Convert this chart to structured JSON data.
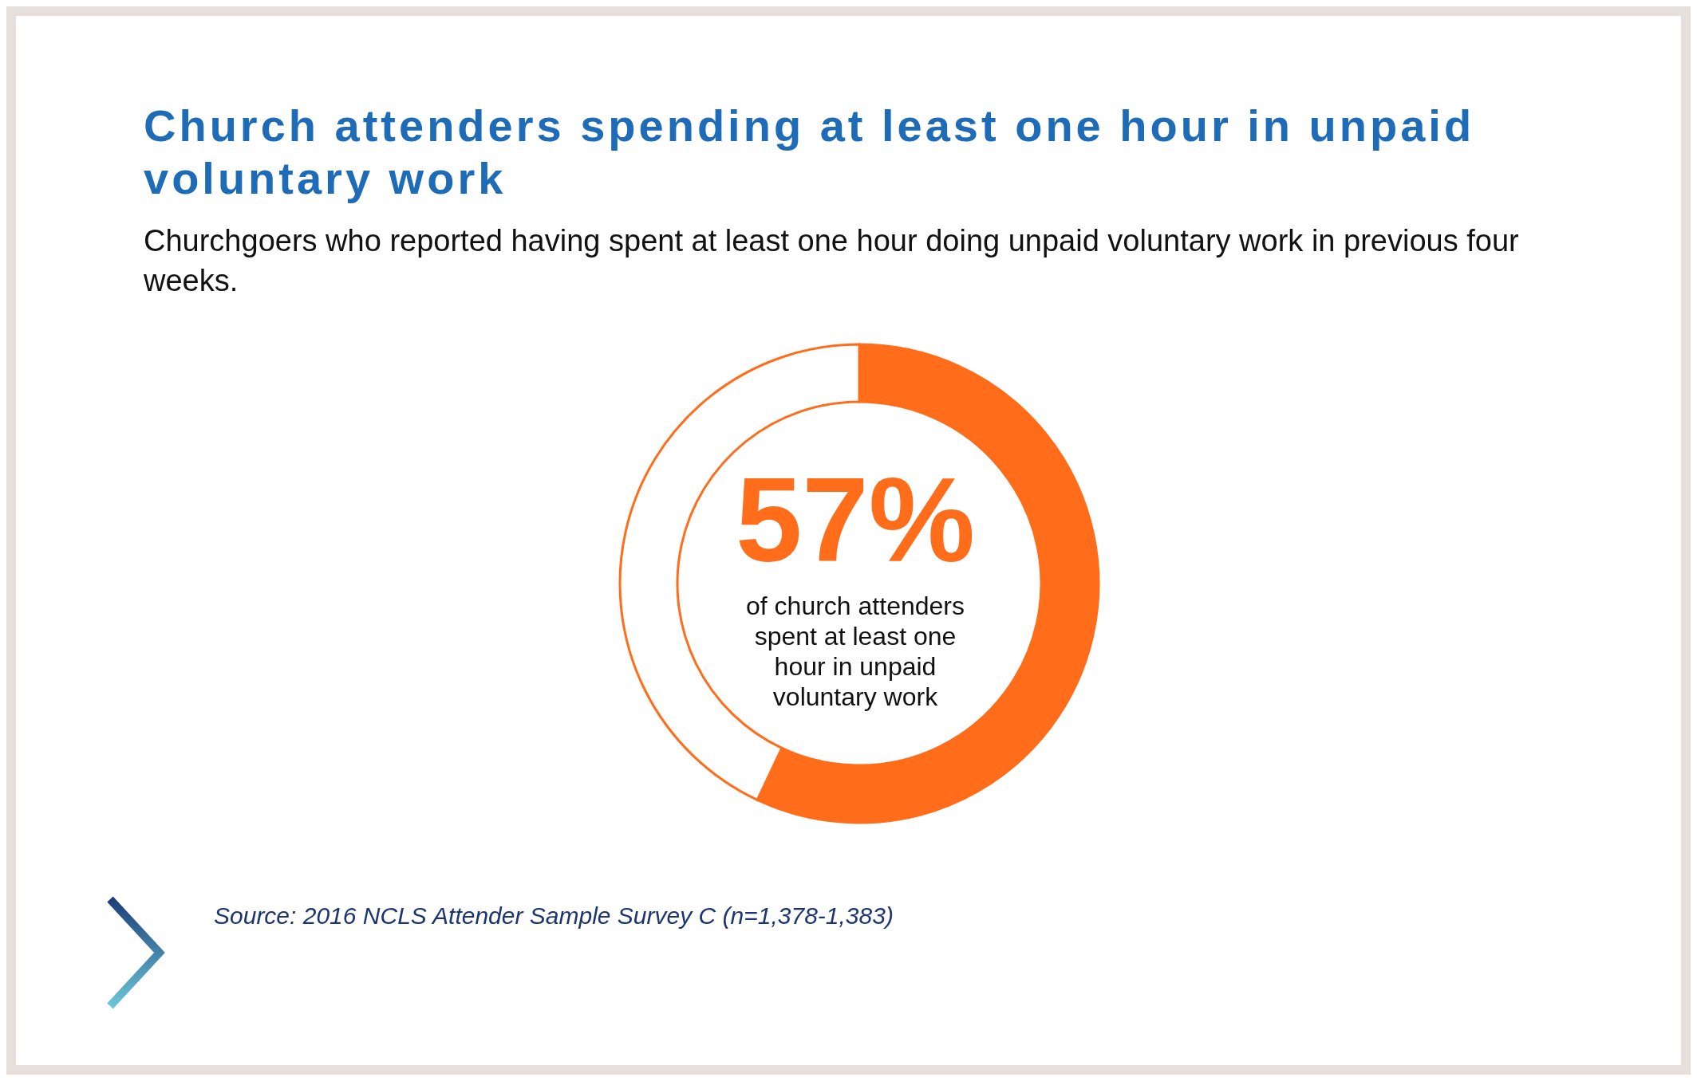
{
  "chart_data": {
    "type": "donut",
    "title": "Church attenders spending at least one hour in unpaid voluntary work",
    "subtitle": "Churchgoers who reported having spent at least one hour doing unpaid voluntary work in previous four weeks.",
    "categories": [
      null,
      null
    ],
    "values": [
      57,
      43
    ],
    "colors": [
      "#ff6d1a",
      "#ffffff"
    ],
    "value_labels": [
      "57%",
      null
    ],
    "annotations": [
      "of church attenders spent at least one hour in unpaid voluntary work",
      "Source: 2016 NCLS Attender Sample Survey C (n=1,378-1,383)"
    ]
  }
}
